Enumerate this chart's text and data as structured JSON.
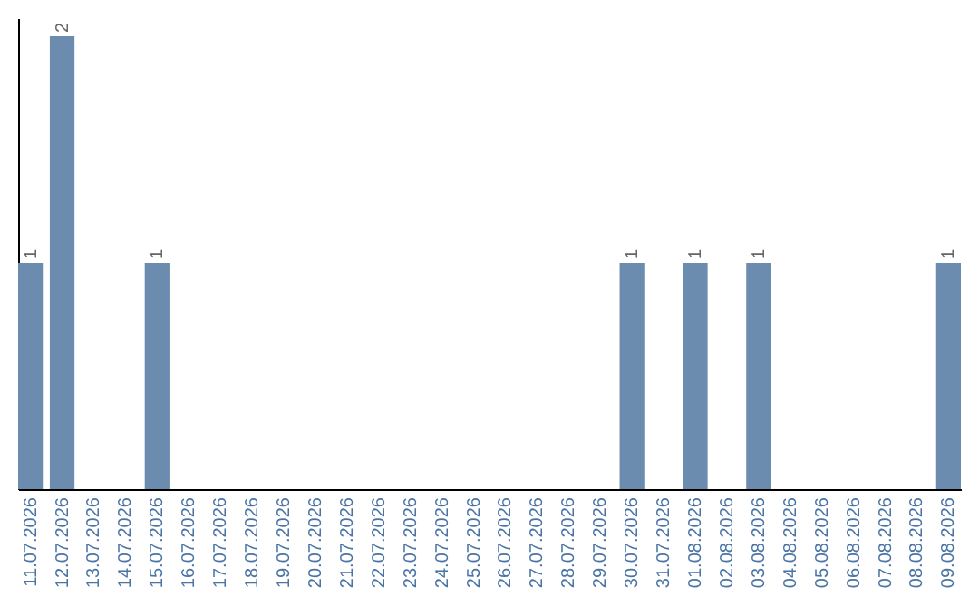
{
  "chart_data": {
    "type": "bar",
    "categories": [
      "11.07.2026",
      "12.07.2026",
      "13.07.2026",
      "14.07.2026",
      "15.07.2026",
      "16.07.2026",
      "17.07.2026",
      "18.07.2026",
      "19.07.2026",
      "20.07.2026",
      "21.07.2026",
      "22.07.2026",
      "23.07.2026",
      "24.07.2026",
      "25.07.2026",
      "26.07.2026",
      "27.07.2026",
      "28.07.2026",
      "29.07.2026",
      "30.07.2026",
      "31.07.2026",
      "01.08.2026",
      "02.08.2026",
      "03.08.2026",
      "04.08.2026",
      "05.08.2026",
      "06.08.2026",
      "07.08.2026",
      "08.08.2026",
      "09.08.2026"
    ],
    "values": [
      1,
      2,
      0,
      0,
      1,
      0,
      0,
      0,
      0,
      0,
      0,
      0,
      0,
      0,
      0,
      0,
      0,
      0,
      0,
      1,
      0,
      1,
      0,
      1,
      0,
      0,
      0,
      0,
      0,
      1
    ],
    "value_labels": [
      "1",
      "2",
      null,
      null,
      "1",
      null,
      null,
      null,
      null,
      null,
      null,
      null,
      null,
      null,
      null,
      null,
      null,
      null,
      null,
      "1",
      null,
      "1",
      null,
      "1",
      null,
      null,
      null,
      null,
      null,
      "1"
    ],
    "color": "#6b8cae",
    "ylim": [
      0,
      2.08
    ],
    "tick_labels": "x",
    "grid": false
  }
}
